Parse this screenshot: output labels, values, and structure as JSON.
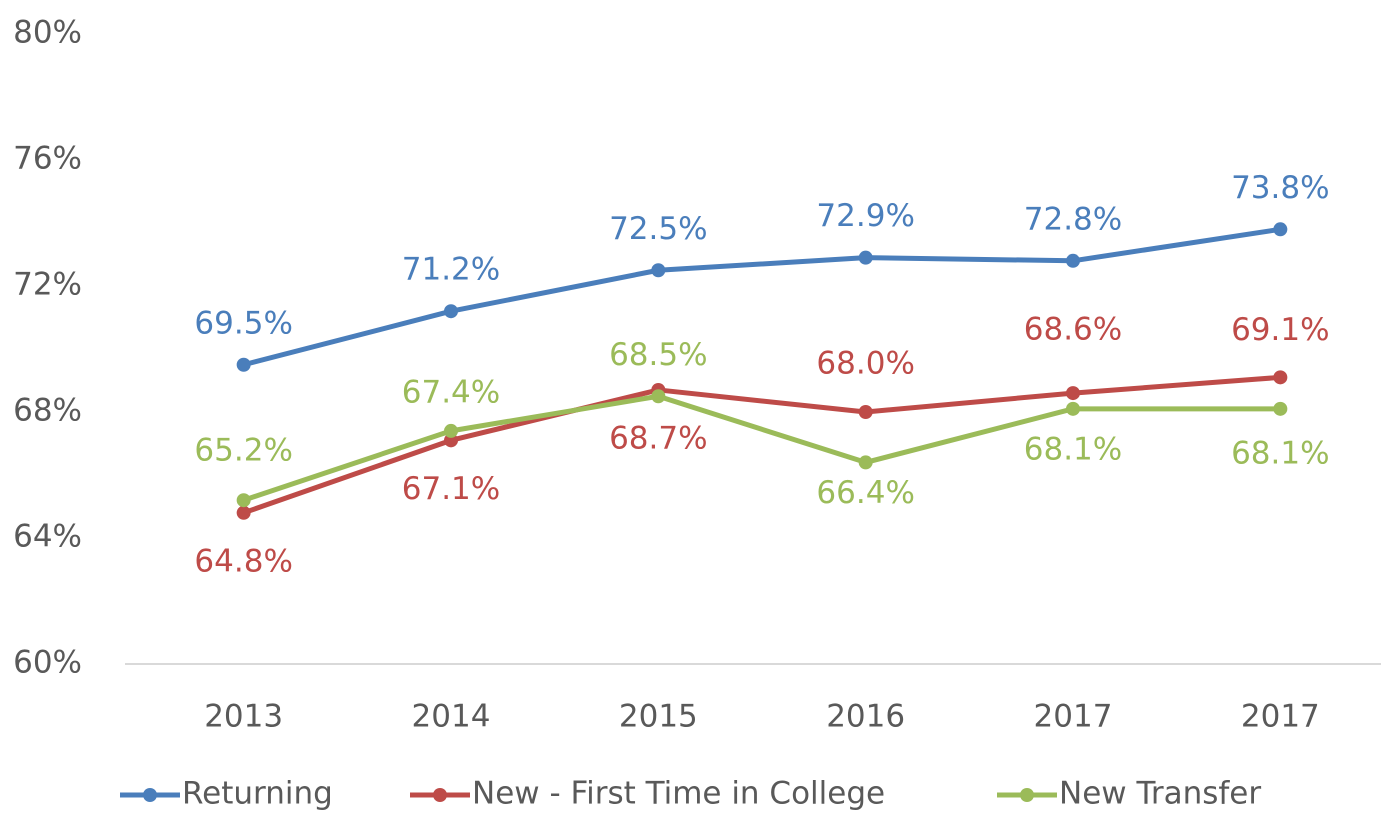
{
  "chart_data": {
    "type": "line",
    "categories": [
      "2013",
      "2014",
      "2015",
      "2016",
      "2017",
      "2017"
    ],
    "series": [
      {
        "name": "Returning",
        "color": "#4a7ebb",
        "values": [
          69.5,
          71.2,
          72.5,
          72.9,
          72.8,
          73.8
        ],
        "value_labels": [
          "69.5%",
          "71.2%",
          "72.5%",
          "72.9%",
          "72.8%",
          "73.8%"
        ]
      },
      {
        "name": "New - First Time in College",
        "color": "#be4b48",
        "values": [
          64.8,
          67.1,
          68.7,
          68.0,
          68.6,
          69.1
        ],
        "value_labels": [
          "64.8%",
          "67.1%",
          "68.7%",
          "68.0%",
          "68.6%",
          "69.1%"
        ]
      },
      {
        "name": "New Transfer",
        "color": "#9bbb59",
        "values": [
          65.2,
          67.4,
          68.5,
          66.4,
          68.1,
          68.1
        ],
        "value_labels": [
          "65.2%",
          "67.4%",
          "68.5%",
          "66.4%",
          "68.1%",
          "68.1%"
        ]
      }
    ],
    "ylim": [
      60,
      80
    ],
    "yticks": [
      {
        "value": 60,
        "label": "60%"
      },
      {
        "value": 64,
        "label": "64%"
      },
      {
        "value": 68,
        "label": "68%"
      },
      {
        "value": 72,
        "label": "72%"
      },
      {
        "value": 76,
        "label": "76%"
      },
      {
        "value": 80,
        "label": "80%"
      }
    ],
    "grid": false,
    "legend": "bottom"
  }
}
